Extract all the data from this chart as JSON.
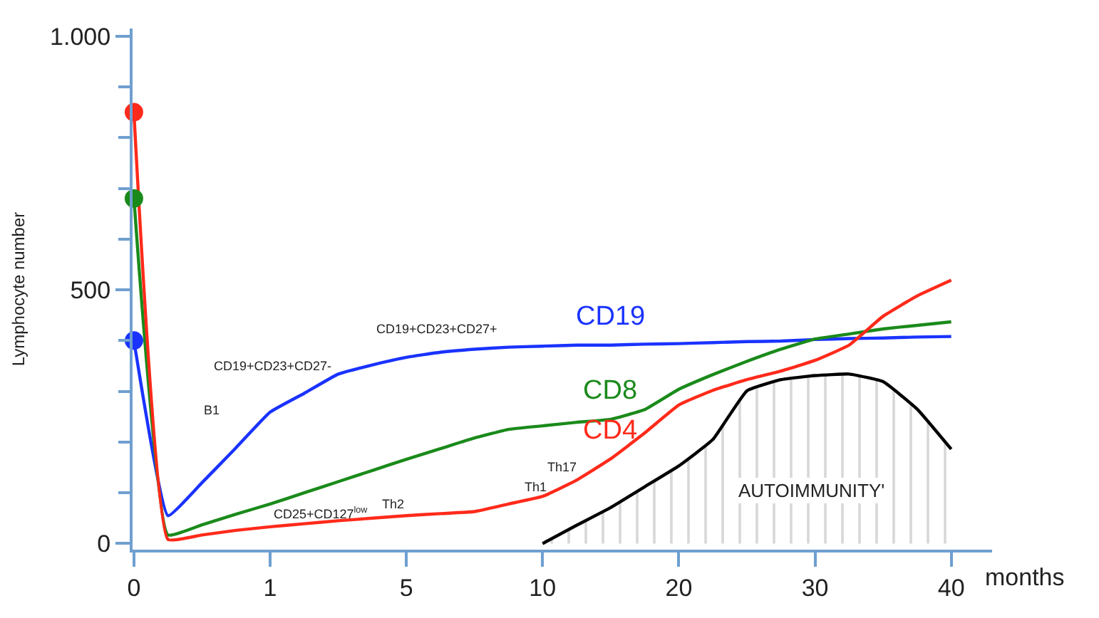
{
  "chart_data": {
    "type": "line",
    "ylabel": "Lymphocyte number",
    "xlabel": "months",
    "categories": [
      "0",
      null,
      null,
      null,
      "1",
      null,
      null,
      null,
      "5",
      null,
      null,
      null,
      "10",
      null,
      null,
      null,
      "20",
      null,
      null,
      null,
      "30",
      null,
      null,
      null,
      "40"
    ],
    "ylim": [
      -12,
      1015
    ],
    "yticks": [
      0,
      {
        "value": 100,
        "label": null
      },
      {
        "value": 200,
        "label": null
      },
      {
        "value": 300,
        "label": null
      },
      {
        "value": 400,
        "label": null
      },
      500,
      {
        "value": 600,
        "label": null
      },
      {
        "value": 700,
        "label": null
      },
      {
        "value": 800,
        "label": null
      },
      {
        "value": 900,
        "label": null
      },
      {
        "value": 1000,
        "label": "1.000"
      }
    ],
    "series": [
      {
        "type": "area",
        "color": "#000000",
        "values": [
          null,
          null,
          null,
          null,
          null,
          null,
          null,
          null,
          null,
          null,
          null,
          null,
          0,
          36,
          71,
          112,
          153,
          205,
          301,
          323,
          331,
          334,
          319,
          265,
          186
        ]
      },
      {
        "name": "CD19",
        "color": "#1a33ff",
        "values": [
          400,
          55,
          120,
          189,
          259,
          296,
          334,
          352,
          367,
          377,
          383,
          387,
          389,
          391,
          391,
          393,
          394,
          396,
          398,
          399,
          402,
          404,
          405,
          407,
          408
        ]
      },
      {
        "name": "CD8",
        "color": "#1a8a1a",
        "values": [
          680,
          17,
          37,
          58,
          78,
          100,
          122,
          144,
          166,
          187,
          208,
          225,
          232,
          239,
          245,
          264,
          304,
          333,
          359,
          383,
          403,
          413,
          423,
          430,
          437
        ]
      },
      {
        "name": "CD4",
        "color": "#ff2a1a",
        "values": [
          850,
          8,
          17,
          26,
          33,
          39,
          45,
          50,
          55,
          59,
          63,
          78,
          93,
          125,
          167,
          218,
          273,
          302,
          323,
          340,
          361,
          391,
          448,
          488,
          519
        ]
      },
      {
        "type": "scatter",
        "color": "#ff2a1a",
        "marker": "circle",
        "x": [
          "0"
        ],
        "values": [
          850
        ]
      },
      {
        "type": "scatter",
        "color": "#1a8a1a",
        "marker": "circle",
        "x": [
          "0"
        ],
        "values": [
          680
        ]
      },
      {
        "type": "scatter",
        "color": "#1a33ff",
        "marker": "circle",
        "x": [
          "0"
        ],
        "values": [
          400
        ]
      }
    ],
    "annotations": [
      "B1",
      "CD19+CD23+CD27-",
      "CD19+CD23+CD27+",
      "CD25+CD127$^{low}$",
      "Th2",
      "Th1",
      "Th17",
      "AUTOIMMUNITY'"
    ]
  }
}
